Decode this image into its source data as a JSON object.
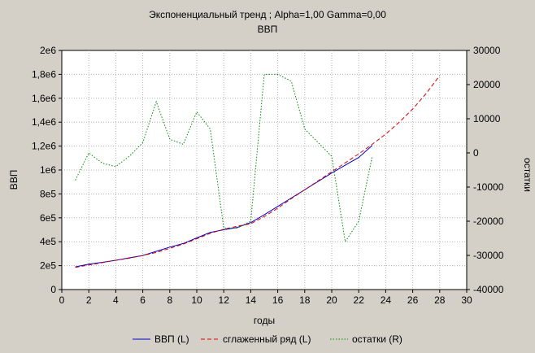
{
  "chart_data": {
    "type": "line",
    "title": "Экспоненциальный тренд ; Alpha=1,00 Gamma=0,00",
    "subtitle": "ВВП",
    "xlabel": "годы",
    "ylabel_left": "ВВП",
    "ylabel_right": "остатки",
    "xlim": [
      0,
      30
    ],
    "ylim_left": [
      0,
      2000000
    ],
    "ylim_right": [
      -40000,
      30000
    ],
    "x_ticks": [
      "0",
      "2",
      "4",
      "6",
      "8",
      "10",
      "12",
      "14",
      "16",
      "18",
      "20",
      "22",
      "24",
      "26",
      "28",
      "30"
    ],
    "y_left_ticks": [
      "0",
      "2e5",
      "4e5",
      "6e5",
      "8e5",
      "1e6",
      "1,2e6",
      "1,4e6",
      "1,6e6",
      "1,8e6",
      "2e6"
    ],
    "y_right_ticks": [
      "-40000",
      "-30000",
      "-20000",
      "-10000",
      "0",
      "10000",
      "20000",
      "30000"
    ],
    "grid": true,
    "legend_position": "bottom",
    "series": [
      {
        "name": "ВВП (L)",
        "axis": "left",
        "color": "#0000cc",
        "style": "solid",
        "x": [
          1,
          2,
          3,
          4,
          5,
          6,
          7,
          8,
          9,
          10,
          11,
          12,
          13,
          14,
          15,
          16,
          17,
          18,
          19,
          20,
          21,
          22,
          23
        ],
        "values": [
          190000,
          212000,
          228000,
          245000,
          265000,
          285000,
          320000,
          355000,
          385000,
          432000,
          478000,
          500000,
          520000,
          560000,
          625000,
          695000,
          765000,
          835000,
          905000,
          975000,
          1040000,
          1105000,
          1205000
        ]
      },
      {
        "name": "сглаженный ряд (L)",
        "axis": "left",
        "color": "#dd0000",
        "style": "dashed",
        "x": [
          1,
          2,
          3,
          4,
          5,
          6,
          7,
          8,
          9,
          10,
          11,
          12,
          13,
          14,
          15,
          16,
          17,
          18,
          19,
          20,
          21,
          22,
          23,
          24,
          25,
          26,
          27,
          28
        ],
        "values": [
          185000,
          205000,
          225000,
          245000,
          262000,
          285000,
          310000,
          345000,
          380000,
          425000,
          470000,
          505000,
          530000,
          550000,
          610000,
          680000,
          760000,
          835000,
          910000,
          985000,
          1060000,
          1135000,
          1215000,
          1300000,
          1400000,
          1510000,
          1640000,
          1790000
        ]
      },
      {
        "name": "остатки (R)",
        "axis": "right",
        "color": "#008800",
        "style": "dotted",
        "x": [
          1,
          2,
          3,
          4,
          5,
          6,
          7,
          8,
          9,
          10,
          11,
          12,
          13,
          14,
          15,
          16,
          17,
          18,
          19,
          20,
          21,
          22,
          23
        ],
        "values": [
          -8000,
          0,
          -3000,
          -4000,
          -1000,
          3000,
          15000,
          4000,
          2500,
          12000,
          7000,
          -22000,
          -22000,
          -20000,
          23000,
          23000,
          21000,
          7000,
          3000,
          -1000,
          -26000,
          -20000,
          -1000
        ]
      }
    ]
  }
}
